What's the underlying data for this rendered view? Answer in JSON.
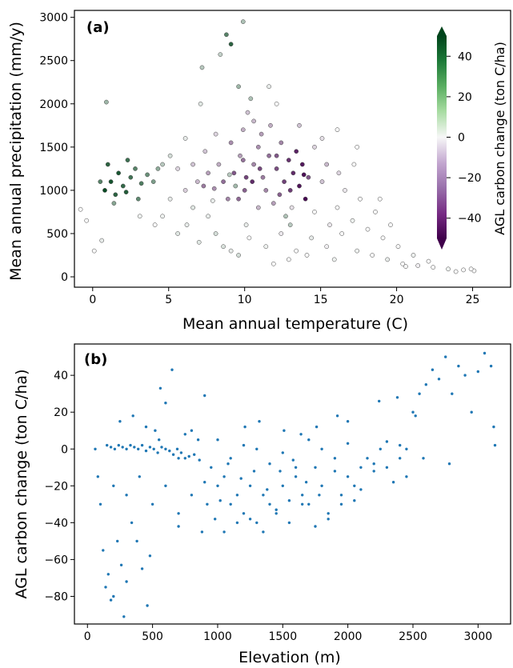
{
  "chart_data": [
    {
      "panel": "(a)",
      "type": "scatter",
      "xlabel": "Mean annual temperature (C)",
      "ylabel": "Mean annual precipitation (mm/y)",
      "xlim": [
        -1.2,
        27.5
      ],
      "ylim": [
        -120,
        3080
      ],
      "xticks": [
        0,
        5,
        10,
        15,
        20,
        25
      ],
      "yticks": [
        0,
        500,
        1000,
        1500,
        2000,
        2500,
        3000
      ],
      "colorbar": {
        "label": "AGL carbon change (ton C/ha)",
        "range": [
          -50,
          50
        ],
        "ticks": [
          40,
          20,
          0,
          -20,
          -40
        ],
        "colormap": "PRGn",
        "extend": "both",
        "colors": {
          "neg": "#40004b",
          "mid": "#f7f7f7",
          "pos": "#00441b"
        }
      },
      "points": [
        [
          0.8,
          1000,
          48
        ],
        [
          1.2,
          1100,
          45
        ],
        [
          1.5,
          950,
          40
        ],
        [
          1.7,
          1200,
          44
        ],
        [
          2.0,
          1050,
          38
        ],
        [
          2.2,
          980,
          42
        ],
        [
          2.5,
          1150,
          35
        ],
        [
          2.8,
          1250,
          30
        ],
        [
          3.0,
          900,
          28
        ],
        [
          3.2,
          1080,
          32
        ],
        [
          3.6,
          1180,
          26
        ],
        [
          4.0,
          1100,
          22
        ],
        [
          4.3,
          1250,
          18
        ],
        [
          1.0,
          1300,
          40
        ],
        [
          0.5,
          1100,
          30
        ],
        [
          1.4,
          850,
          20
        ],
        [
          2.3,
          1350,
          36
        ],
        [
          4.6,
          1300,
          10
        ],
        [
          0.9,
          2020,
          15
        ],
        [
          8.8,
          2800,
          30
        ],
        [
          9.1,
          2690,
          40
        ],
        [
          9.9,
          2950,
          12
        ],
        [
          7.2,
          2420,
          10
        ],
        [
          8.4,
          2570,
          8
        ],
        [
          9.6,
          2200,
          15
        ],
        [
          10.4,
          2060,
          12
        ],
        [
          9.0,
          1180,
          10
        ],
        [
          9.4,
          1050,
          14
        ],
        [
          12.7,
          700,
          12
        ],
        [
          13.0,
          600,
          10
        ],
        [
          8.6,
          1100,
          -25
        ],
        [
          9.3,
          1200,
          -30
        ],
        [
          10.0,
          1000,
          -28
        ],
        [
          10.6,
          1300,
          -20
        ],
        [
          11.2,
          1150,
          -22
        ],
        [
          8.0,
          1020,
          -18
        ],
        [
          12.1,
          1250,
          -32
        ],
        [
          12.6,
          1100,
          -35
        ],
        [
          13.2,
          1200,
          -40
        ],
        [
          13.6,
          1050,
          -45
        ],
        [
          14.0,
          900,
          -48
        ],
        [
          13.4,
          1450,
          -42
        ],
        [
          12.9,
          1350,
          -38
        ],
        [
          11.6,
          1400,
          -25
        ],
        [
          10.9,
          1500,
          -18
        ],
        [
          9.7,
          1400,
          -15
        ],
        [
          8.3,
          1300,
          -12
        ],
        [
          7.6,
          1200,
          -15
        ],
        [
          11.4,
          1000,
          -20
        ],
        [
          12.3,
          950,
          -28
        ],
        [
          13.8,
          1300,
          -44
        ],
        [
          14.2,
          1150,
          -30
        ],
        [
          9.9,
          1700,
          -12
        ],
        [
          10.6,
          1800,
          -10
        ],
        [
          11.1,
          1650,
          -15
        ],
        [
          12.4,
          1550,
          -20
        ],
        [
          10.2,
          1900,
          -8
        ],
        [
          11.7,
          1750,
          -12
        ],
        [
          6.6,
          1300,
          -8
        ],
        [
          6.9,
          1100,
          -10
        ],
        [
          7.4,
          1450,
          -8
        ],
        [
          15.4,
          1300,
          -10
        ],
        [
          15.1,
          1100,
          -8
        ],
        [
          16.2,
          1200,
          -5
        ],
        [
          5.6,
          1250,
          -5
        ],
        [
          6.1,
          1000,
          -6
        ],
        [
          6.2,
          600,
          2
        ],
        [
          7.0,
          400,
          3
        ],
        [
          8.1,
          500,
          5
        ],
        [
          9.1,
          300,
          2
        ],
        [
          10.3,
          450,
          0
        ],
        [
          11.4,
          350,
          1
        ],
        [
          12.4,
          500,
          -2
        ],
        [
          13.4,
          300,
          0
        ],
        [
          14.4,
          450,
          2
        ],
        [
          15.4,
          350,
          -1
        ],
        [
          16.4,
          500,
          0
        ],
        [
          17.4,
          300,
          1
        ],
        [
          18.4,
          250,
          0
        ],
        [
          19.4,
          200,
          2
        ],
        [
          20.4,
          150,
          0
        ],
        [
          21.4,
          130,
          -1
        ],
        [
          22.4,
          110,
          0
        ],
        [
          23.4,
          90,
          1
        ],
        [
          24.4,
          80,
          0
        ],
        [
          25.1,
          70,
          0
        ],
        [
          16.1,
          800,
          0
        ],
        [
          15.6,
          600,
          -2
        ],
        [
          17.1,
          650,
          1
        ],
        [
          18.1,
          550,
          0
        ],
        [
          14.6,
          750,
          0
        ],
        [
          13.1,
          800,
          -3
        ],
        [
          19.1,
          450,
          0
        ],
        [
          20.1,
          350,
          0
        ],
        [
          21.1,
          250,
          1
        ],
        [
          22.1,
          180,
          0
        ],
        [
          5.1,
          900,
          2
        ],
        [
          4.6,
          700,
          1
        ],
        [
          4.1,
          600,
          0
        ],
        [
          5.6,
          500,
          3
        ],
        [
          7.6,
          700,
          2
        ],
        [
          8.6,
          350,
          4
        ],
        [
          17.6,
          900,
          0
        ],
        [
          18.6,
          750,
          0
        ],
        [
          16.6,
          1000,
          -2
        ],
        [
          17.2,
          1300,
          0
        ],
        [
          17.4,
          1500,
          0
        ],
        [
          11.6,
          2200,
          2
        ],
        [
          12.1,
          2000,
          0
        ],
        [
          7.1,
          2000,
          3
        ],
        [
          6.1,
          1600,
          2
        ],
        [
          5.1,
          1400,
          5
        ],
        [
          -0.8,
          780,
          0
        ],
        [
          -0.4,
          650,
          0
        ],
        [
          0.1,
          300,
          0
        ],
        [
          0.6,
          420,
          2
        ],
        [
          3.1,
          700,
          1
        ],
        [
          19.6,
          600,
          0
        ],
        [
          18.9,
          900,
          0
        ],
        [
          20.6,
          120,
          0
        ],
        [
          23.9,
          60,
          0
        ],
        [
          24.9,
          90,
          0
        ],
        [
          15.9,
          200,
          1
        ],
        [
          14.1,
          250,
          0
        ],
        [
          12.9,
          200,
          0
        ],
        [
          11.9,
          150,
          0
        ],
        [
          9.6,
          250,
          5
        ],
        [
          10.1,
          600,
          2
        ],
        [
          6.6,
          800,
          3
        ],
        [
          7.9,
          880,
          2
        ],
        [
          14.6,
          1500,
          -5
        ],
        [
          15.1,
          1600,
          -3
        ],
        [
          16.1,
          1700,
          0
        ],
        [
          13.6,
          1750,
          -8
        ],
        [
          8.1,
          1650,
          -5
        ],
        [
          9.1,
          1550,
          -18
        ],
        [
          10.1,
          1150,
          -34
        ],
        [
          9.6,
          900,
          -26
        ],
        [
          10.9,
          800,
          -10
        ],
        [
          11.9,
          850,
          -15
        ],
        [
          8.9,
          900,
          -20
        ],
        [
          7.3,
          1050,
          -22
        ],
        [
          12.1,
          1400,
          -30
        ],
        [
          13.0,
          1000,
          -36
        ],
        [
          10.5,
          1100,
          -40
        ],
        [
          11.0,
          1250,
          -33
        ],
        [
          9.9,
          1350,
          -24
        ],
        [
          13.9,
          1180,
          -46
        ]
      ]
    },
    {
      "panel": "(b)",
      "type": "scatter",
      "xlabel": "Elevation (m)",
      "ylabel": "AGL carbon change (ton C/ha)",
      "xlim": [
        -100,
        3250
      ],
      "ylim": [
        -95,
        57
      ],
      "xticks": [
        0,
        500,
        1000,
        1500,
        2000,
        2500,
        3000
      ],
      "yticks": [
        -80,
        -60,
        -40,
        -20,
        0,
        20,
        40
      ],
      "color": "#1f77b4",
      "points": [
        [
          60,
          0
        ],
        [
          80,
          -15
        ],
        [
          100,
          -30
        ],
        [
          120,
          -55
        ],
        [
          140,
          -75
        ],
        [
          160,
          -68
        ],
        [
          180,
          -82
        ],
        [
          200,
          -80
        ],
        [
          230,
          -50
        ],
        [
          260,
          -63
        ],
        [
          280,
          -91
        ],
        [
          300,
          -72
        ],
        [
          340,
          -40
        ],
        [
          380,
          -50
        ],
        [
          420,
          -65
        ],
        [
          460,
          -85
        ],
        [
          480,
          -58
        ],
        [
          520,
          10
        ],
        [
          560,
          33
        ],
        [
          600,
          25
        ],
        [
          650,
          43
        ],
        [
          700,
          -5
        ],
        [
          800,
          10
        ],
        [
          900,
          29
        ],
        [
          150,
          2
        ],
        [
          180,
          1
        ],
        [
          210,
          0
        ],
        [
          240,
          2
        ],
        [
          270,
          1
        ],
        [
          300,
          0
        ],
        [
          330,
          2
        ],
        [
          360,
          1
        ],
        [
          390,
          0
        ],
        [
          420,
          2
        ],
        [
          450,
          -1
        ],
        [
          480,
          1
        ],
        [
          510,
          0
        ],
        [
          540,
          -2
        ],
        [
          570,
          1
        ],
        [
          600,
          0
        ],
        [
          630,
          -1
        ],
        [
          660,
          -3
        ],
        [
          690,
          0
        ],
        [
          720,
          -2
        ],
        [
          750,
          -5
        ],
        [
          780,
          -4
        ],
        [
          820,
          -3
        ],
        [
          860,
          -6
        ],
        [
          200,
          -20
        ],
        [
          300,
          -25
        ],
        [
          400,
          -15
        ],
        [
          500,
          -30
        ],
        [
          600,
          -20
        ],
        [
          700,
          -35
        ],
        [
          800,
          -25
        ],
        [
          900,
          -18
        ],
        [
          1000,
          -20
        ],
        [
          1050,
          -15
        ],
        [
          1100,
          -30
        ],
        [
          1150,
          -25
        ],
        [
          1200,
          -35
        ],
        [
          1250,
          -20
        ],
        [
          1300,
          -40
        ],
        [
          1350,
          -25
        ],
        [
          1400,
          -30
        ],
        [
          1450,
          -35
        ],
        [
          1500,
          -20
        ],
        [
          1550,
          -28
        ],
        [
          1600,
          -15
        ],
        [
          1650,
          -25
        ],
        [
          1700,
          -30
        ],
        [
          1750,
          -10
        ],
        [
          1800,
          -20
        ],
        [
          1850,
          -35
        ],
        [
          1900,
          -5
        ],
        [
          1950,
          -25
        ],
        [
          2000,
          -15
        ],
        [
          2050,
          -20
        ],
        [
          2100,
          -10
        ],
        [
          2150,
          -5
        ],
        [
          2200,
          -12
        ],
        [
          2250,
          0
        ],
        [
          2300,
          -10
        ],
        [
          2350,
          -18
        ],
        [
          2400,
          -5
        ],
        [
          2450,
          0
        ],
        [
          2500,
          20
        ],
        [
          2550,
          30
        ],
        [
          2600,
          35
        ],
        [
          2650,
          43
        ],
        [
          2700,
          38
        ],
        [
          2750,
          50
        ],
        [
          2800,
          30
        ],
        [
          2850,
          45
        ],
        [
          2900,
          40
        ],
        [
          2950,
          20
        ],
        [
          3000,
          42
        ],
        [
          3050,
          52
        ],
        [
          3100,
          45
        ],
        [
          3120,
          12
        ],
        [
          3130,
          2
        ],
        [
          2520,
          18
        ],
        [
          2580,
          -5
        ],
        [
          2780,
          -8
        ],
        [
          1000,
          5
        ],
        [
          1100,
          -5
        ],
        [
          1200,
          2
        ],
        [
          1300,
          0
        ],
        [
          1400,
          -8
        ],
        [
          1500,
          -2
        ],
        [
          1600,
          -10
        ],
        [
          1700,
          5
        ],
        [
          1800,
          0
        ],
        [
          1900,
          -12
        ],
        [
          2000,
          3
        ],
        [
          2100,
          -22
        ],
        [
          2200,
          -8
        ],
        [
          2300,
          4
        ],
        [
          2400,
          2
        ],
        [
          2450,
          -15
        ],
        [
          1050,
          -45
        ],
        [
          1150,
          -40
        ],
        [
          1250,
          -38
        ],
        [
          1350,
          -45
        ],
        [
          1450,
          -33
        ],
        [
          1550,
          -40
        ],
        [
          1650,
          -30
        ],
        [
          1750,
          -42
        ],
        [
          1850,
          -38
        ],
        [
          1950,
          -30
        ],
        [
          2050,
          -28
        ],
        [
          1320,
          15
        ],
        [
          1640,
          8
        ],
        [
          1920,
          18
        ],
        [
          2240,
          26
        ],
        [
          2380,
          28
        ],
        [
          1210,
          12
        ],
        [
          1510,
          10
        ],
        [
          1760,
          12
        ],
        [
          2000,
          15
        ],
        [
          700,
          -42
        ],
        [
          880,
          -45
        ],
        [
          950,
          -10
        ],
        [
          1020,
          -28
        ],
        [
          1080,
          -8
        ],
        [
          1180,
          -16
        ],
        [
          1280,
          -12
        ],
        [
          1380,
          -22
        ],
        [
          1480,
          -12
        ],
        [
          1580,
          -6
        ],
        [
          1680,
          -18
        ],
        [
          1780,
          -25
        ],
        [
          250,
          15
        ],
        [
          350,
          18
        ],
        [
          450,
          12
        ],
        [
          550,
          5
        ],
        [
          750,
          8
        ],
        [
          850,
          5
        ],
        [
          920,
          -30
        ],
        [
          980,
          -38
        ]
      ]
    }
  ]
}
